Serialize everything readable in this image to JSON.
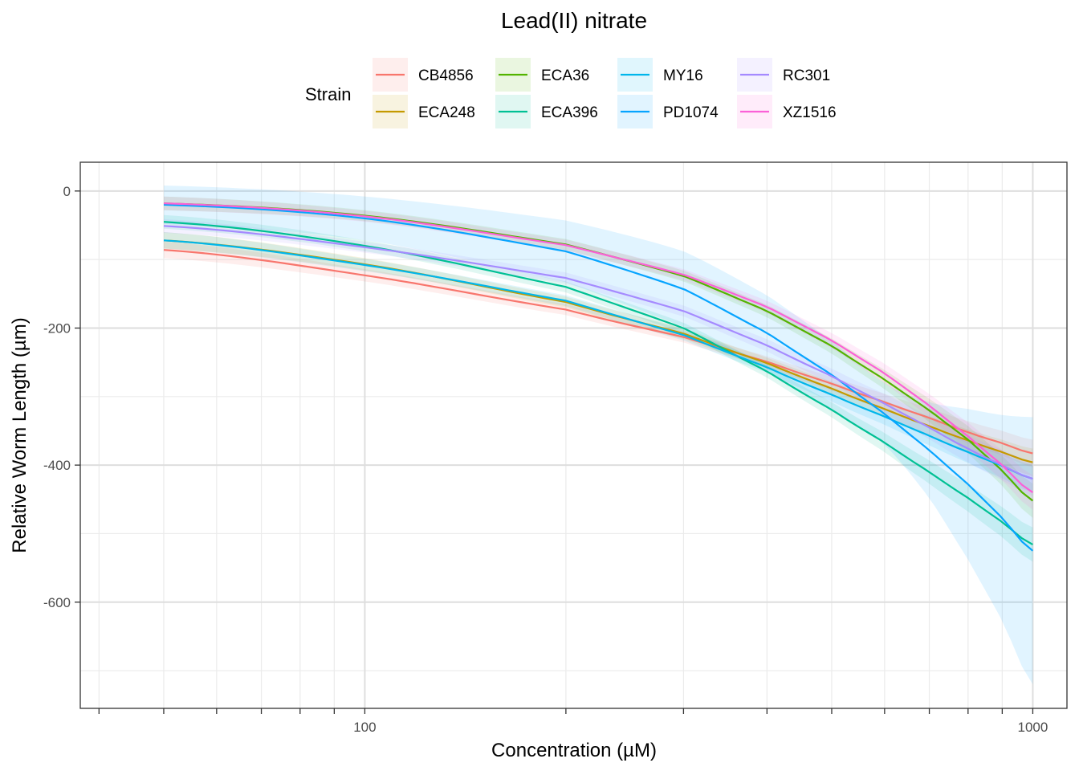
{
  "chart_data": {
    "type": "line",
    "title": "Lead(II) nitrate",
    "xlabel": "Concentration (µM)",
    "ylabel": "Relative Worm Length (µm)",
    "x_scale": "log10",
    "xlim": [
      37.5,
      1125
    ],
    "ylim": [
      -755,
      42
    ],
    "x_ticks": [
      100,
      1000
    ],
    "x_tick_labels": [
      "100",
      "1000"
    ],
    "y_ticks": [
      0,
      -200,
      -400,
      -600
    ],
    "y_tick_labels": [
      "0",
      "-200",
      "-400",
      "-600"
    ],
    "grid": true,
    "legend": {
      "title": "Strain",
      "position": "top"
    },
    "x": [
      50,
      100,
      200,
      300,
      400,
      500,
      600,
      700,
      800,
      900,
      1000
    ],
    "series": [
      {
        "name": "CB4856",
        "color": "#F8766D",
        "values": [
          -86,
          -123,
          -173,
          -213,
          -249,
          -281,
          -308,
          -331,
          -352,
          -368,
          -383
        ],
        "band": [
          12,
          9,
          8,
          8,
          8,
          10,
          12,
          14,
          16,
          18,
          20
        ]
      },
      {
        "name": "ECA248",
        "color": "#C49A00",
        "values": [
          -72,
          -107,
          -162,
          -208,
          -251,
          -288,
          -318,
          -343,
          -364,
          -381,
          -396
        ],
        "band": [
          12,
          9,
          8,
          8,
          8,
          10,
          12,
          14,
          16,
          18,
          20
        ]
      },
      {
        "name": "ECA36",
        "color": "#53B400",
        "values": [
          -18,
          -36,
          -78,
          -124,
          -175,
          -226,
          -275,
          -320,
          -363,
          -408,
          -452
        ],
        "band": [
          10,
          8,
          8,
          8,
          9,
          11,
          14,
          17,
          20,
          22,
          25
        ]
      },
      {
        "name": "ECA396",
        "color": "#00C094",
        "values": [
          -45,
          -80,
          -140,
          -200,
          -263,
          -319,
          -367,
          -410,
          -448,
          -483,
          -516
        ],
        "band": [
          10,
          8,
          8,
          8,
          9,
          11,
          14,
          17,
          20,
          22,
          25
        ]
      },
      {
        "name": "MY16",
        "color": "#00B6EB",
        "values": [
          -72,
          -108,
          -160,
          -210,
          -257,
          -297,
          -329,
          -357,
          -381,
          -401,
          -420
        ],
        "band": [
          12,
          9,
          8,
          8,
          8,
          10,
          12,
          14,
          16,
          18,
          20
        ]
      },
      {
        "name": "PD1074",
        "color": "#06A4FF",
        "values": [
          -20,
          -40,
          -88,
          -143,
          -207,
          -268,
          -325,
          -378,
          -428,
          -477,
          -525
        ],
        "band": [
          28,
          32,
          45,
          55,
          55,
          50,
          45,
          70,
          110,
          150,
          195
        ]
      },
      {
        "name": "RC301",
        "color": "#A58AFF",
        "values": [
          -51,
          -82,
          -127,
          -175,
          -225,
          -270,
          -310,
          -345,
          -376,
          -400,
          -420
        ],
        "band": [
          10,
          8,
          8,
          8,
          9,
          11,
          14,
          17,
          20,
          22,
          25
        ]
      },
      {
        "name": "XZ1516",
        "color": "#FB61D7",
        "values": [
          -18,
          -37,
          -79,
          -122,
          -169,
          -218,
          -266,
          -313,
          -358,
          -400,
          -440
        ],
        "band": [
          10,
          8,
          8,
          8,
          9,
          11,
          14,
          17,
          20,
          22,
          25
        ]
      }
    ]
  }
}
